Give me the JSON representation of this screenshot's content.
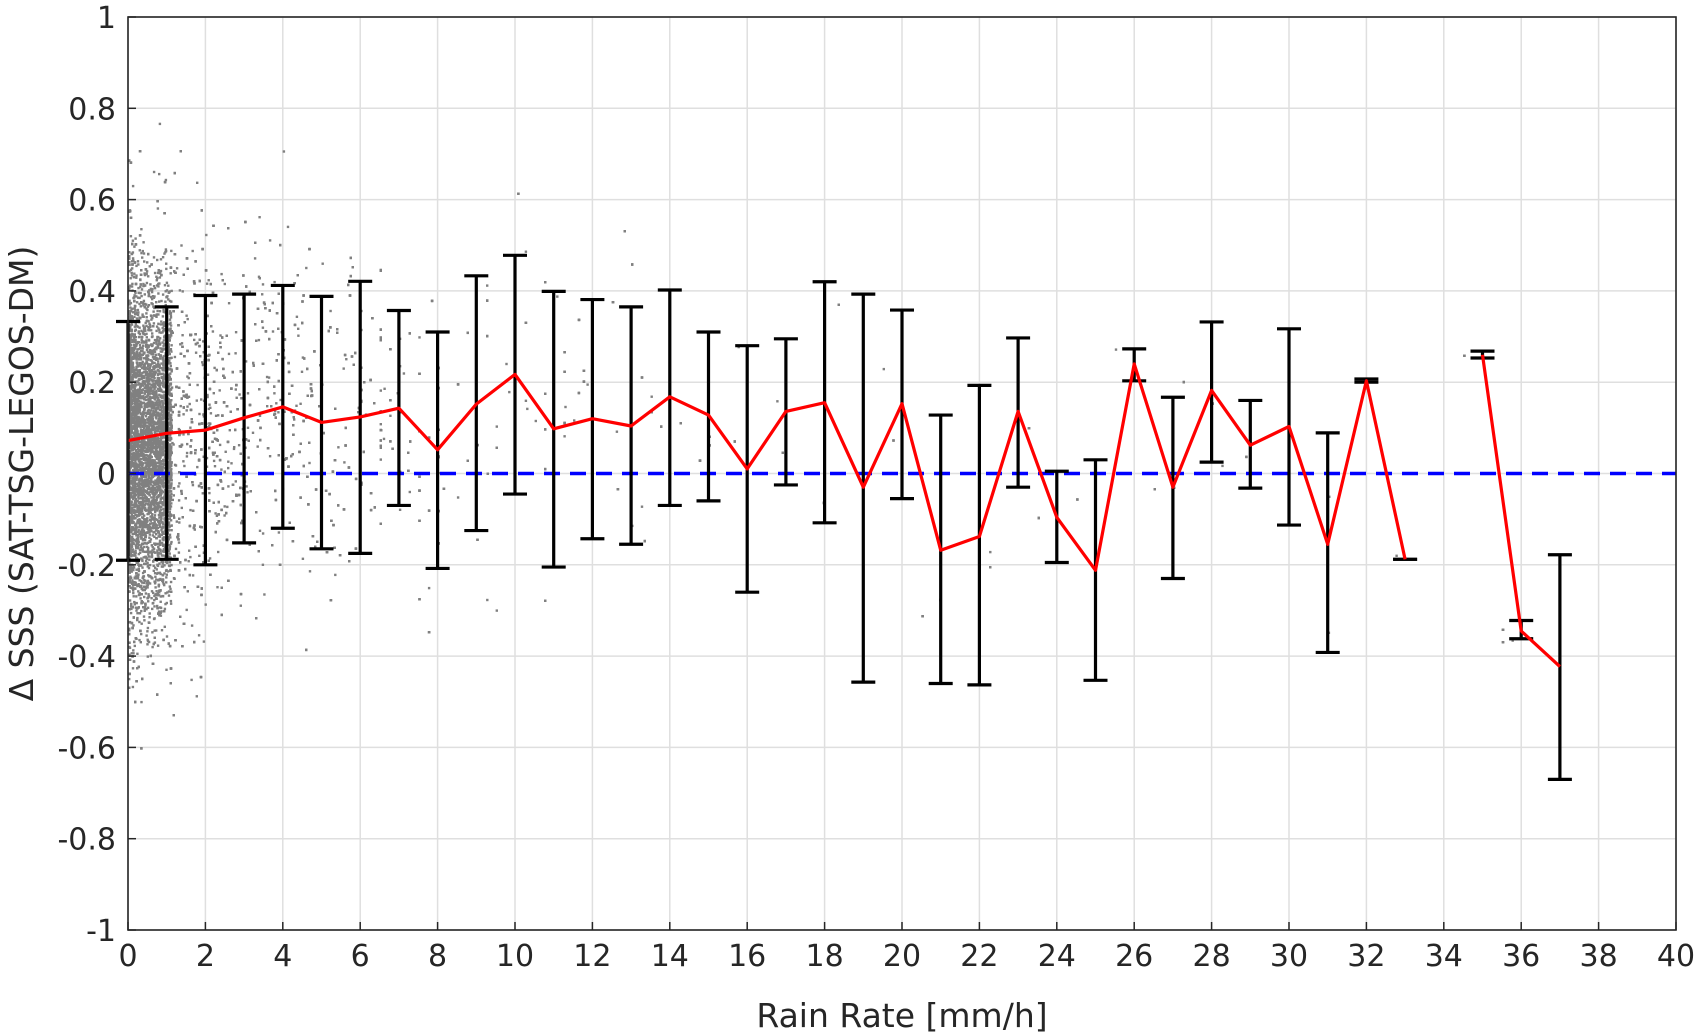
{
  "colors": {
    "scatter": "#808080",
    "mean_line": "#ff0000",
    "error_bars": "#000000",
    "zero_line": "#0000ff"
  },
  "chart_data": {
    "type": "scatter",
    "title": "",
    "xlabel": "Rain Rate [mm/h]",
    "ylabel": "Δ SSS (SAT-TSG-LEGOS-DM)",
    "xlim": [
      0,
      40
    ],
    "ylim": [
      -1,
      1
    ],
    "xticks": [
      "0",
      "2",
      "4",
      "6",
      "8",
      "10",
      "12",
      "14",
      "16",
      "18",
      "20",
      "22",
      "24",
      "26",
      "28",
      "30",
      "32",
      "34",
      "36",
      "38",
      "40"
    ],
    "yticks": [
      "-1",
      "-0.8",
      "-0.6",
      "-0.4",
      "-0.2",
      "0",
      "0.2",
      "0.4",
      "0.6",
      "0.8",
      "1"
    ],
    "grid": true,
    "reference_line": {
      "y": 0,
      "style": "dashed"
    },
    "series": [
      {
        "kind": "mean_with_errorbars",
        "segments": [
          {
            "x": [
              0,
              1,
              2,
              3,
              4,
              5,
              6,
              7,
              8,
              9,
              10,
              11,
              12,
              13,
              14,
              15,
              16,
              17,
              18,
              19,
              20,
              21,
              22,
              23,
              24,
              25,
              26,
              27,
              28,
              29,
              30,
              31,
              32,
              33
            ],
            "y": [
              0.072,
              0.088,
              0.095,
              0.122,
              0.146,
              0.112,
              0.124,
              0.143,
              0.052,
              0.152,
              0.217,
              0.098,
              0.12,
              0.104,
              0.168,
              0.128,
              0.01,
              0.136,
              0.155,
              -0.03,
              0.153,
              -0.168,
              -0.138,
              0.136,
              -0.096,
              -0.212,
              0.24,
              -0.03,
              0.182,
              0.062,
              0.103,
              -0.155,
              0.203,
              -0.188
            ],
            "upper": [
              0.333,
              0.365,
              0.39,
              0.393,
              0.412,
              0.388,
              0.421,
              0.357,
              0.31,
              0.433,
              0.478,
              0.399,
              0.381,
              0.365,
              0.402,
              0.31,
              0.28,
              0.295,
              0.42,
              0.393,
              0.358,
              0.128,
              0.193,
              0.297,
              0.005,
              0.03,
              0.273,
              0.167,
              0.332,
              0.16,
              0.317,
              0.089,
              0.207,
              -0.188
            ],
            "lower": [
              -0.19,
              -0.188,
              -0.2,
              -0.152,
              -0.12,
              -0.165,
              -0.175,
              -0.07,
              -0.208,
              -0.125,
              -0.045,
              -0.205,
              -0.143,
              -0.155,
              -0.07,
              -0.06,
              -0.26,
              -0.025,
              -0.108,
              -0.457,
              -0.055,
              -0.46,
              -0.463,
              -0.03,
              -0.195,
              -0.453,
              0.203,
              -0.23,
              0.025,
              -0.032,
              -0.113,
              -0.392,
              0.2,
              -0.188
            ]
          },
          {
            "x": [
              35,
              36,
              37
            ],
            "y": [
              0.26,
              -0.345,
              -0.423
            ],
            "upper": [
              0.268,
              -0.322,
              -0.178
            ],
            "lower": [
              0.253,
              -0.362,
              -0.67
            ]
          }
        ]
      }
    ],
    "scatter_description_only_visual": "dense gray points concentrated near 0 mm/h spreading to about 37 mm/h"
  }
}
